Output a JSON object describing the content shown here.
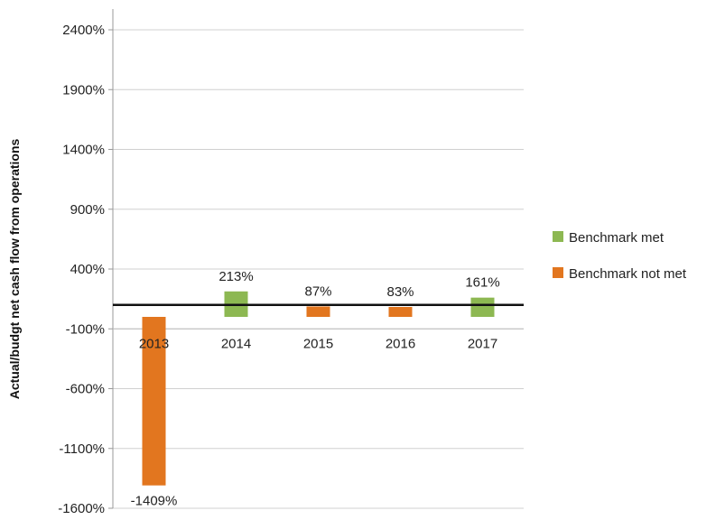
{
  "chart_data": {
    "type": "bar",
    "title": "",
    "xlabel": "",
    "ylabel": "Actual/budgt net cash flow from operations",
    "ylim": [
      -1600,
      2400
    ],
    "yticks": [
      2400,
      1900,
      1400,
      900,
      400,
      -100,
      -600,
      -1100,
      -1600
    ],
    "ytick_labels": [
      "2400%",
      "1900%",
      "1400%",
      "900%",
      "400%",
      "-100%",
      "-600%",
      "-1100%",
      "-1600%"
    ],
    "categories": [
      "2013",
      "2014",
      "2015",
      "2016",
      "2017"
    ],
    "values": [
      -1409,
      213,
      87,
      83,
      161
    ],
    "data_labels": [
      "-1409%",
      "213%",
      "87%",
      "83%",
      "161%"
    ],
    "series_status": [
      "not_met",
      "met",
      "not_met",
      "not_met",
      "met"
    ],
    "benchmark_line": 100,
    "grid": true,
    "legend_position": "right",
    "legend": [
      {
        "key": "met",
        "label": "Benchmark  met",
        "color": "#8db852"
      },
      {
        "key": "not_met",
        "label": "Benchmark not met",
        "color": "#e2761f"
      }
    ]
  }
}
